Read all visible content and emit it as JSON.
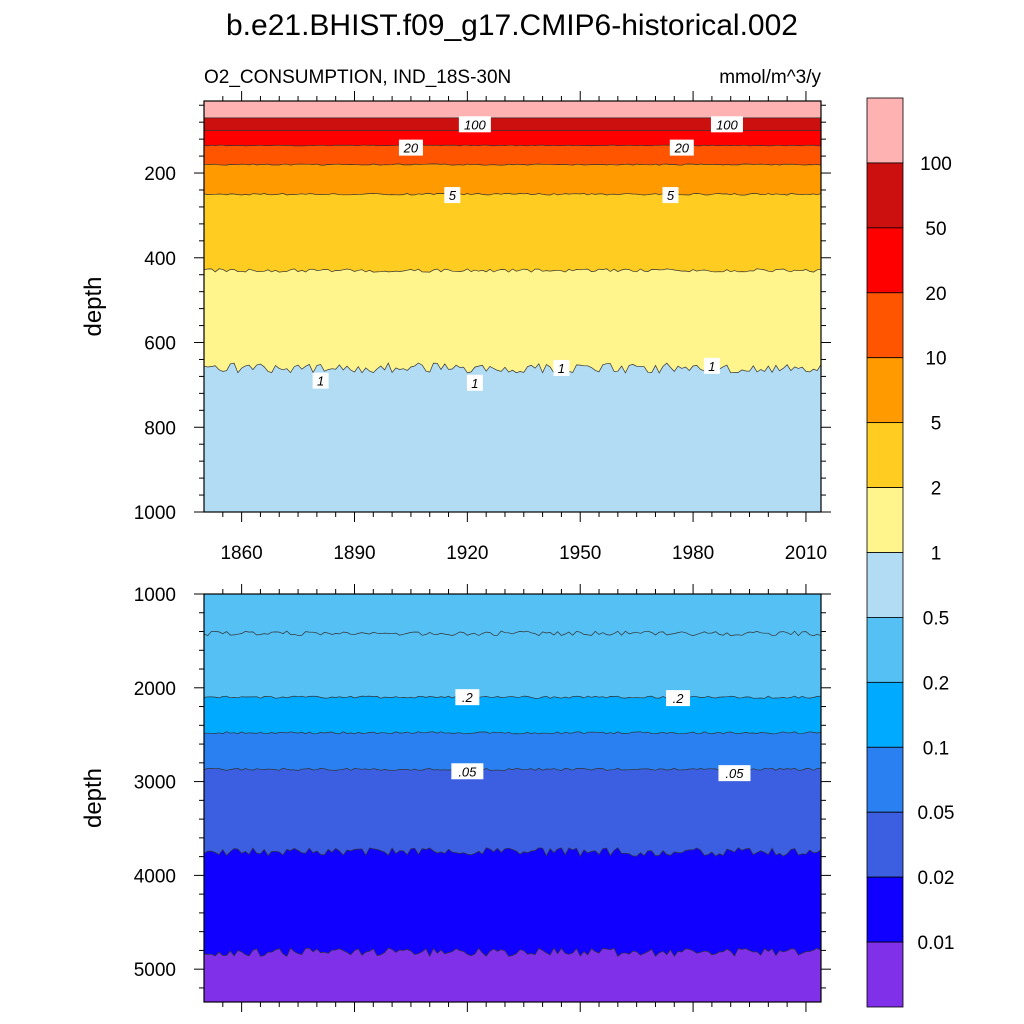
{
  "title": "b.e21.BHIST.f09_g17.CMIP6-historical.002",
  "chart_data": {
    "type": "contour",
    "subtitle_left": "O2_CONSUMPTION, IND_18S-30N",
    "subtitle_right": "mmol/m^3/y",
    "x": {
      "range": [
        1850,
        2014
      ],
      "ticks": [
        1860,
        1890,
        1920,
        1950,
        1980,
        2010
      ]
    },
    "panels": [
      {
        "ylabel": "depth",
        "ylim": [
          30,
          1000
        ],
        "yticks": [
          200,
          400,
          600,
          800,
          1000
        ],
        "levels": [
          {
            "value": 100,
            "depth": 70,
            "amp": 0
          },
          {
            "value": 50,
            "depth": 100,
            "amp": 0
          },
          {
            "value": 20,
            "depth": 135,
            "amp": 1
          },
          {
            "value": 10,
            "depth": 180,
            "amp": 1.5
          },
          {
            "value": 5,
            "depth": 250,
            "amp": 2
          },
          {
            "value": 2,
            "depth": 430,
            "amp": 4
          },
          {
            "value": 1,
            "depth": 660,
            "amp": 12
          }
        ],
        "contour_labels": [
          {
            "text": "100",
            "x": 1922,
            "depth": 85
          },
          {
            "text": "100",
            "x": 1989,
            "depth": 85
          },
          {
            "text": "20",
            "x": 1905,
            "depth": 140
          },
          {
            "text": "20",
            "x": 1977,
            "depth": 140
          },
          {
            "text": "5",
            "x": 1916,
            "depth": 252
          },
          {
            "text": "5",
            "x": 1974,
            "depth": 252
          },
          {
            "text": "1",
            "x": 1881,
            "depth": 690
          },
          {
            "text": "1",
            "x": 1922,
            "depth": 695
          },
          {
            "text": "1",
            "x": 1945,
            "depth": 660
          },
          {
            "text": "1",
            "x": 1985,
            "depth": 655
          }
        ]
      },
      {
        "ylabel": "depth",
        "ylim": [
          1000,
          5350
        ],
        "yticks": [
          1000,
          2000,
          3000,
          4000,
          5000
        ],
        "levels": [
          {
            "value": 0.5,
            "depth": 1420,
            "amp": 25
          },
          {
            "value": 0.2,
            "depth": 2100,
            "amp": 12
          },
          {
            "value": 0.1,
            "depth": 2480,
            "amp": 12
          },
          {
            "value": 0.05,
            "depth": 2870,
            "amp": 12
          },
          {
            "value": 0.02,
            "depth": 3750,
            "amp": 45
          },
          {
            "value": 0.01,
            "depth": 4820,
            "amp": 45
          }
        ],
        "contour_labels": [
          {
            "text": ".2",
            "x": 1920,
            "depth": 2100
          },
          {
            "text": ".2",
            "x": 1976,
            "depth": 2110
          },
          {
            "text": ".05",
            "x": 1920,
            "depth": 2890
          },
          {
            "text": ".05",
            "x": 1991,
            "depth": 2910
          }
        ]
      }
    ],
    "colorbar": {
      "labels": [
        "100",
        "50",
        "20",
        "10",
        "5",
        "2",
        "1",
        "0.5",
        "0.2",
        "0.1",
        "0.05",
        "0.02",
        "0.01"
      ],
      "colors": [
        "#ffb2b2",
        "#cc1010",
        "#ff0000",
        "#ff5500",
        "#ff9a00",
        "#ffcc22",
        "#fff58c",
        "#b2dcf4",
        "#55c0f4",
        "#00aaff",
        "#2a80f0",
        "#3b5fe0",
        "#1000ff",
        "#8030e8"
      ]
    }
  }
}
